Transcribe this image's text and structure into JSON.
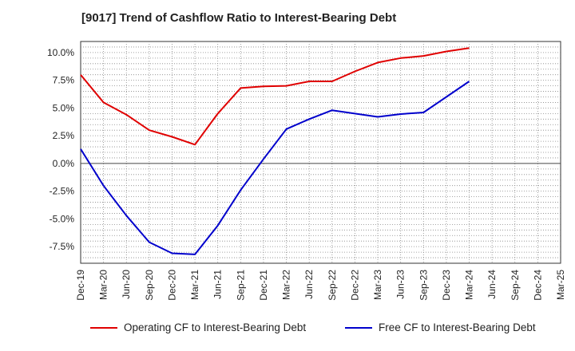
{
  "chart_data": {
    "type": "line",
    "title": "[9017]  Trend of Cashflow Ratio to Interest-Bearing Debt",
    "xlabel": "",
    "ylabel": "",
    "x": [
      "Dec-19",
      "Mar-20",
      "Jun-20",
      "Sep-20",
      "Dec-20",
      "Mar-21",
      "Jun-21",
      "Sep-21",
      "Dec-21",
      "Mar-22",
      "Jun-22",
      "Sep-22",
      "Dec-22",
      "Mar-23",
      "Jun-23",
      "Sep-23",
      "Dec-23",
      "Mar-24",
      "Jun-24",
      "Sep-24",
      "Dec-24",
      "Mar-25"
    ],
    "yticks": [
      "10.0%",
      "7.5%",
      "5.0%",
      "2.5%",
      "0.0%",
      "-2.5%",
      "-5.0%",
      "-7.5%"
    ],
    "ylim": [
      -9.0,
      11.0
    ],
    "grid": true,
    "legend_position": "bottom",
    "series": [
      {
        "name": "Operating CF to Interest-Bearing Debt",
        "color": "#e00000",
        "values": [
          8.0,
          5.5,
          4.4,
          3.0,
          2.4,
          1.7,
          4.5,
          6.8,
          6.95,
          7.0,
          7.4,
          7.4,
          8.3,
          9.1,
          9.5,
          9.7,
          10.1,
          10.4,
          null,
          null,
          null,
          null
        ]
      },
      {
        "name": "Free CF to Interest-Bearing Debt",
        "color": "#0000cc",
        "values": [
          1.3,
          -2.0,
          -4.7,
          -7.1,
          -8.1,
          -8.2,
          -5.6,
          -2.4,
          0.4,
          3.1,
          4.0,
          4.8,
          4.5,
          4.2,
          4.45,
          4.6,
          6.0,
          7.4,
          null,
          null,
          null,
          null
        ]
      }
    ]
  }
}
